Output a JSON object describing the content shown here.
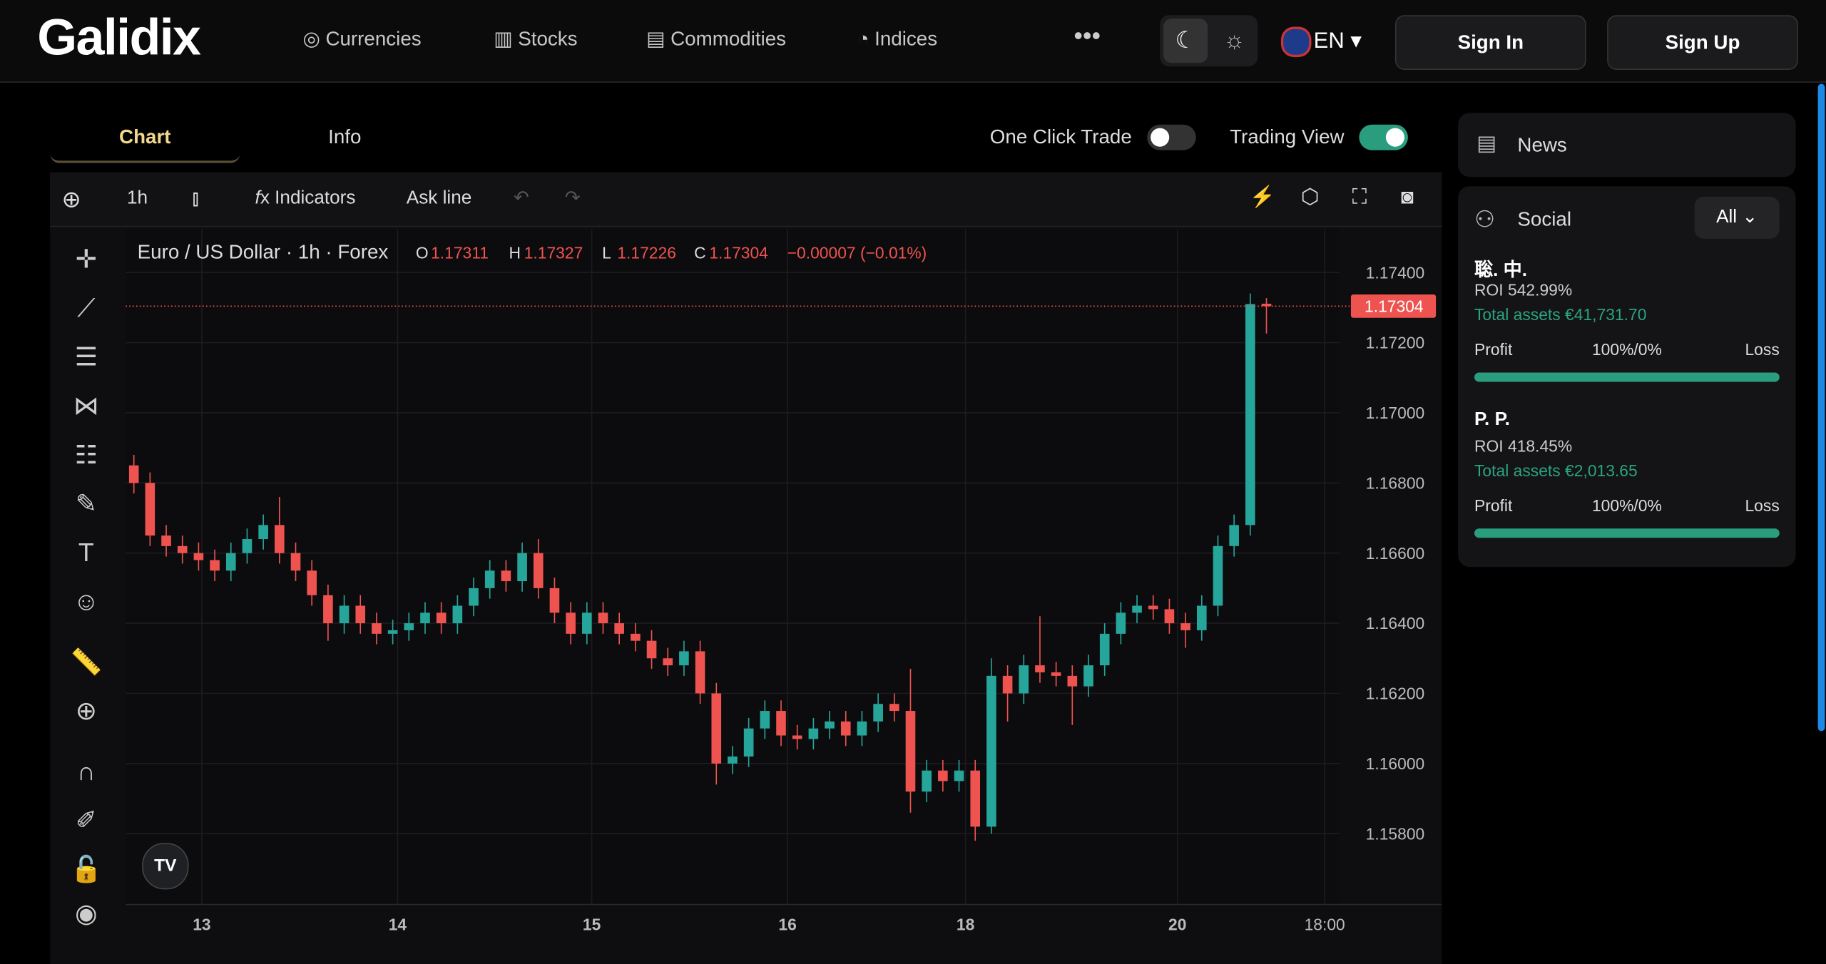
{
  "header": {
    "brand": "Galidix",
    "nav": [
      "Currencies",
      "Stocks",
      "Commodities",
      "Indices"
    ],
    "language": "EN",
    "sign_in": "Sign In",
    "sign_up": "Sign Up"
  },
  "tabs": [
    "Chart",
    "Info"
  ],
  "toggles": {
    "one_click_trade": "One Click Trade",
    "trading_view": "Trading View"
  },
  "toolbar": {
    "interval": "1h",
    "indicators": "Indicators",
    "ask_line": "Ask line"
  },
  "sidebar": {
    "news": "News",
    "social": "Social",
    "filter": "All",
    "traders": [
      {
        "name": "聡. 中.",
        "roi": "ROI 542.99%",
        "assets": "Total assets €41,731.70",
        "profit": "Profit",
        "ratio": "100%/0%",
        "loss": "Loss"
      },
      {
        "name": "P. P.",
        "roi": "ROI 418.45%",
        "assets": "Total assets €2,013.65",
        "profit": "Profit",
        "ratio": "100%/0%",
        "loss": "Loss"
      }
    ]
  },
  "chart_data": {
    "type": "candlestick",
    "title": "Euro / US Dollar · 1h · Forex",
    "ohlc_labels": [
      "O",
      "H",
      "L",
      "C"
    ],
    "change_label": "−0.00007 (−0.01%)",
    "up_color": "#26a69a",
    "down_color": "#ef5350",
    "grid": true,
    "open": [
      1.1685,
      1.168,
      1.1665,
      1.1662,
      1.166,
      1.1658,
      1.1655,
      1.166,
      1.1664,
      1.1668,
      1.166,
      1.1655,
      1.1648,
      1.164,
      1.1645,
      1.164,
      1.1637,
      1.1638,
      1.164,
      1.1643,
      1.164,
      1.1645,
      1.165,
      1.1655,
      1.1652,
      1.166,
      1.165,
      1.1643,
      1.1637,
      1.1643,
      1.164,
      1.1637,
      1.1635,
      1.163,
      1.1628,
      1.1632,
      1.162,
      1.16,
      1.1602,
      1.161,
      1.1615,
      1.1608,
      1.1607,
      1.161,
      1.1612,
      1.1608,
      1.1612,
      1.1617,
      1.1615,
      1.1592,
      1.1598,
      1.1595,
      1.1598,
      1.1582,
      1.1625,
      1.162,
      1.1628,
      1.1626,
      1.1625,
      1.1622,
      1.1628,
      1.1637,
      1.1643,
      1.1645,
      1.1644,
      1.164,
      1.1638,
      1.1645,
      1.1662,
      1.1668,
      1.17311
    ],
    "high": [
      1.1688,
      1.1683,
      1.1668,
      1.1665,
      1.1663,
      1.1661,
      1.1663,
      1.1667,
      1.1671,
      1.1676,
      1.1663,
      1.1658,
      1.1651,
      1.1648,
      1.1648,
      1.1643,
      1.1641,
      1.1643,
      1.1646,
      1.1646,
      1.1648,
      1.1653,
      1.1658,
      1.1658,
      1.1663,
      1.1664,
      1.1653,
      1.1646,
      1.1646,
      1.1646,
      1.1643,
      1.164,
      1.1638,
      1.1633,
      1.1635,
      1.1635,
      1.1623,
      1.1605,
      1.1613,
      1.1618,
      1.1618,
      1.1611,
      1.1613,
      1.1615,
      1.1615,
      1.1615,
      1.162,
      1.162,
      1.1627,
      1.1601,
      1.1601,
      1.1601,
      1.1601,
      1.163,
      1.1628,
      1.1631,
      1.1642,
      1.1629,
      1.1628,
      1.1631,
      1.164,
      1.1646,
      1.1648,
      1.1648,
      1.1647,
      1.1643,
      1.1648,
      1.1665,
      1.1671,
      1.1734,
      1.17327
    ],
    "low": [
      1.1677,
      1.1662,
      1.1659,
      1.1657,
      1.1655,
      1.1652,
      1.1652,
      1.1657,
      1.1661,
      1.1657,
      1.1652,
      1.1645,
      1.1635,
      1.1637,
      1.1637,
      1.1634,
      1.1634,
      1.1635,
      1.1637,
      1.1637,
      1.1637,
      1.1642,
      1.1647,
      1.1649,
      1.1649,
      1.1647,
      1.164,
      1.1634,
      1.1634,
      1.1637,
      1.1634,
      1.1632,
      1.1627,
      1.1625,
      1.1625,
      1.1617,
      1.1594,
      1.1597,
      1.1599,
      1.1607,
      1.1605,
      1.1604,
      1.1604,
      1.1607,
      1.1605,
      1.1605,
      1.1609,
      1.1612,
      1.1586,
      1.1589,
      1.1592,
      1.1592,
      1.1578,
      1.158,
      1.1612,
      1.1617,
      1.1623,
      1.1622,
      1.1611,
      1.1619,
      1.1625,
      1.1634,
      1.164,
      1.1641,
      1.1637,
      1.1633,
      1.1635,
      1.1642,
      1.1659,
      1.1665,
      1.17226
    ],
    "close": [
      1.168,
      1.1665,
      1.1662,
      1.166,
      1.1658,
      1.1655,
      1.166,
      1.1664,
      1.1668,
      1.166,
      1.1655,
      1.1648,
      1.164,
      1.1645,
      1.164,
      1.1637,
      1.1638,
      1.164,
      1.1643,
      1.164,
      1.1645,
      1.165,
      1.1655,
      1.1652,
      1.166,
      1.165,
      1.1643,
      1.1637,
      1.1643,
      1.164,
      1.1637,
      1.1635,
      1.163,
      1.1628,
      1.1632,
      1.162,
      1.16,
      1.1602,
      1.161,
      1.1615,
      1.1608,
      1.1607,
      1.161,
      1.1612,
      1.1608,
      1.1612,
      1.1617,
      1.1615,
      1.1592,
      1.1598,
      1.1595,
      1.1598,
      1.1582,
      1.1625,
      1.162,
      1.1628,
      1.1626,
      1.1625,
      1.1622,
      1.1628,
      1.1637,
      1.1643,
      1.1645,
      1.1644,
      1.164,
      1.1638,
      1.1645,
      1.1662,
      1.1668,
      1.1731,
      1.17304
    ],
    "ylim": [
      1.15598,
      1.17523
    ],
    "yticks": [
      {
        "value": 1.158,
        "label": "1.15800"
      },
      {
        "value": 1.16,
        "label": "1.16000"
      },
      {
        "value": 1.162,
        "label": "1.16200"
      },
      {
        "value": 1.164,
        "label": "1.16400"
      },
      {
        "value": 1.166,
        "label": "1.16600"
      },
      {
        "value": 1.168,
        "label": "1.16800"
      },
      {
        "value": 1.17,
        "label": "1.17000"
      },
      {
        "value": 1.172,
        "label": "1.17200"
      },
      {
        "value": 1.174,
        "label": "1.17400"
      }
    ],
    "price_labels": [
      "1.17311",
      "1.17327",
      "1.17226",
      "1.17304"
    ],
    "xlim": [
      -0.5,
      74.5
    ],
    "xticks": [
      {
        "value": 4.2,
        "label": "13"
      },
      {
        "value": 16.3,
        "label": "14"
      },
      {
        "value": 28.3,
        "label": "15"
      },
      {
        "value": 40.4,
        "label": "16"
      },
      {
        "value": 51.4,
        "label": "18"
      },
      {
        "value": 64.5,
        "label": "20"
      },
      {
        "value": 73.6,
        "label": "18:00"
      }
    ]
  }
}
